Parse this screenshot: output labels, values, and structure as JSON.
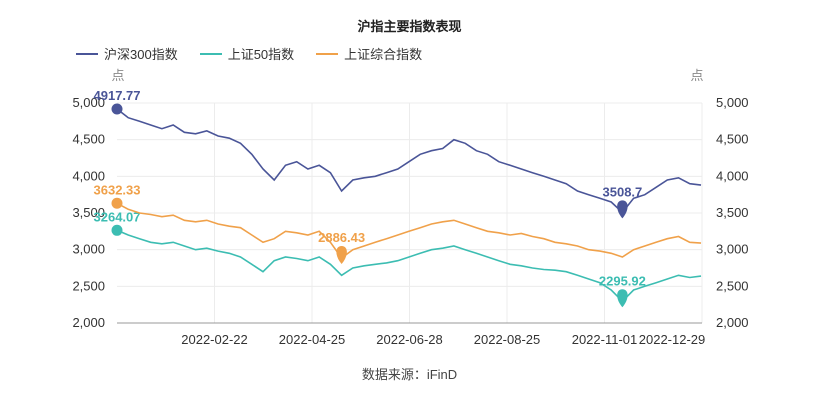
{
  "chart_data": {
    "type": "line",
    "title": "沪指主要指数表现",
    "source": "数据来源：iFinD",
    "y_unit_left": "点",
    "y_unit_right": "点",
    "ylim": [
      2000,
      5000
    ],
    "y_ticks": [
      "2,000",
      "2,500",
      "3,000",
      "3,500",
      "4,000",
      "4,500",
      "5,000"
    ],
    "x_ticks": [
      "2022-02-22",
      "2022-04-25",
      "2022-06-28",
      "2022-08-25",
      "2022-11-01",
      "2022-12-29"
    ],
    "legend_position": "top-left",
    "series": [
      {
        "name": "沪深300指数",
        "color": "#4a5598",
        "values": [
          4917.77,
          4800,
          4750,
          4700,
          4650,
          4700,
          4600,
          4580,
          4620,
          4550,
          4520,
          4450,
          4300,
          4100,
          3950,
          4150,
          4200,
          4100,
          4150,
          4050,
          3800,
          3950,
          3980,
          4000,
          4050,
          4100,
          4200,
          4300,
          4350,
          4380,
          4500,
          4450,
          4350,
          4300,
          4200,
          4150,
          4100,
          4050,
          4000,
          3950,
          3900,
          3800,
          3750,
          3700,
          3650,
          3508.7,
          3700,
          3750,
          3850,
          3950,
          3980,
          3900,
          3880
        ],
        "label_start": "4917.77",
        "label_marker": "3508.7",
        "marker_index": 45
      },
      {
        "name": "上证50指数",
        "color": "#3cbdb2",
        "values": [
          3264.07,
          3200,
          3150,
          3100,
          3080,
          3100,
          3050,
          3000,
          3020,
          2980,
          2950,
          2900,
          2800,
          2700,
          2850,
          2900,
          2880,
          2850,
          2900,
          2800,
          2650,
          2750,
          2780,
          2800,
          2820,
          2850,
          2900,
          2950,
          3000,
          3020,
          3050,
          3000,
          2950,
          2900,
          2850,
          2800,
          2780,
          2750,
          2730,
          2720,
          2700,
          2650,
          2600,
          2550,
          2450,
          2295.92,
          2450,
          2500,
          2550,
          2600,
          2650,
          2620,
          2640
        ],
        "label_start": "3264.07",
        "label_marker": "2295.92",
        "marker_index": 45
      },
      {
        "name": "上证综合指数",
        "color": "#f0a14a",
        "values": [
          3632.33,
          3550,
          3500,
          3480,
          3450,
          3470,
          3400,
          3380,
          3400,
          3350,
          3320,
          3300,
          3200,
          3100,
          3150,
          3250,
          3230,
          3200,
          3250,
          3100,
          2886.43,
          3000,
          3050,
          3100,
          3150,
          3200,
          3250,
          3300,
          3350,
          3380,
          3400,
          3350,
          3300,
          3250,
          3230,
          3200,
          3220,
          3180,
          3150,
          3100,
          3080,
          3050,
          3000,
          2980,
          2950,
          2900,
          3000,
          3050,
          3100,
          3150,
          3180,
          3100,
          3090
        ],
        "label_start": "3632.33",
        "label_marker": "2886.43",
        "marker_index": 20
      }
    ]
  }
}
